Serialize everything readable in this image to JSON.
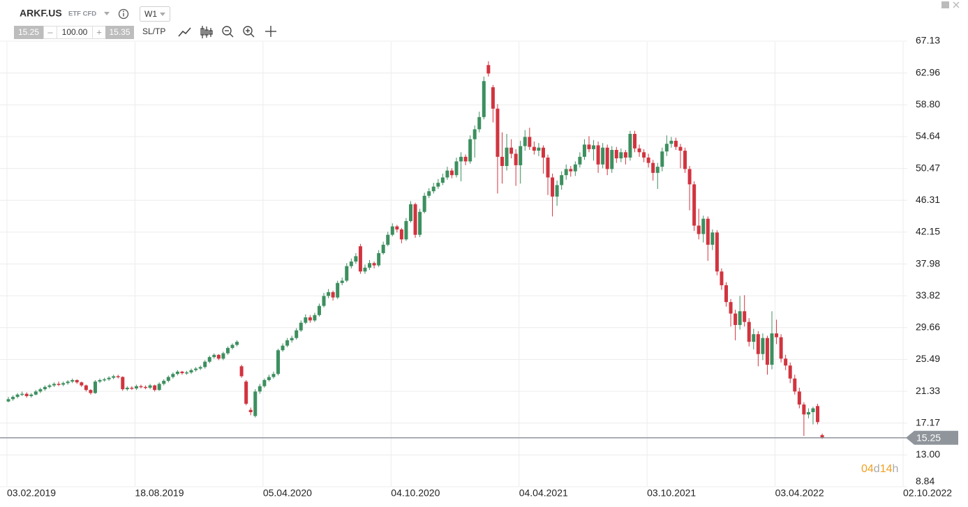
{
  "toolbar": {
    "symbol": "ARKF.US",
    "instrument_type": "ETF CFD",
    "timeframe": "W1",
    "sell_price": "15.25",
    "minus": "–",
    "volume": "100.00",
    "plus": "+",
    "buy_price": "15.35",
    "sl_tp": "SL/TP"
  },
  "chart_data": {
    "type": "candlestick",
    "up_color": "#3d8f5f",
    "down_color": "#d1343f",
    "grid": true,
    "current_price": 15.25,
    "countdown": [
      "04",
      "d",
      "14",
      "h"
    ],
    "xlim": [
      0,
      196
    ],
    "xticks": [
      {
        "value": 0,
        "label": "03.02.2019"
      },
      {
        "value": 28,
        "label": "18.08.2019"
      },
      {
        "value": 56,
        "label": "05.04.2020"
      },
      {
        "value": 84,
        "label": "04.10.2020"
      },
      {
        "value": 112,
        "label": "04.04.2021"
      },
      {
        "value": 140,
        "label": "03.10.2021"
      },
      {
        "value": 168,
        "label": "03.04.2022"
      },
      {
        "value": 196,
        "label": "02.10.2022"
      }
    ],
    "ylim": [
      8.84,
      67.13
    ],
    "yticks": [
      8.84,
      {
        "value": 13,
        "label": "13.00"
      },
      17.17,
      21.33,
      25.49,
      29.66,
      33.82,
      37.98,
      42.15,
      46.31,
      50.47,
      54.64,
      {
        "value": 58.8,
        "label": "58.80"
      },
      62.96,
      67.13
    ],
    "ohlc": [
      [
        20.0,
        20.6,
        19.9,
        20.3
      ],
      [
        20.3,
        20.8,
        20.1,
        20.6
      ],
      [
        20.6,
        21.1,
        20.4,
        20.9
      ],
      [
        20.9,
        21.3,
        20.7,
        21.0
      ],
      [
        21.0,
        21.2,
        20.5,
        20.7
      ],
      [
        20.7,
        21.1,
        20.5,
        20.9
      ],
      [
        20.9,
        21.5,
        20.8,
        21.3
      ],
      [
        21.3,
        21.8,
        21.1,
        21.6
      ],
      [
        21.6,
        22.1,
        21.4,
        21.9
      ],
      [
        21.9,
        22.3,
        21.7,
        22.1
      ],
      [
        22.1,
        22.5,
        21.9,
        22.3
      ],
      [
        22.3,
        22.6,
        22.0,
        22.2
      ],
      [
        22.2,
        22.6,
        22.0,
        22.4
      ],
      [
        22.4,
        22.8,
        22.2,
        22.6
      ],
      [
        22.6,
        23.0,
        22.4,
        22.8
      ],
      [
        22.8,
        22.9,
        22.3,
        22.5
      ],
      [
        22.5,
        22.6,
        21.9,
        22.1
      ],
      [
        22.1,
        22.2,
        21.3,
        21.5
      ],
      [
        21.5,
        21.6,
        20.9,
        21.1
      ],
      [
        21.1,
        22.8,
        21.0,
        22.6
      ],
      [
        22.6,
        23.0,
        22.4,
        22.8
      ],
      [
        22.8,
        23.1,
        22.6,
        22.9
      ],
      [
        22.9,
        23.3,
        22.7,
        23.1
      ],
      [
        23.1,
        23.5,
        22.9,
        23.3
      ],
      [
        23.3,
        23.5,
        23.0,
        23.2
      ],
      [
        23.2,
        23.3,
        21.4,
        21.6
      ],
      [
        21.6,
        22.0,
        21.4,
        21.8
      ],
      [
        21.8,
        22.0,
        21.5,
        21.7
      ],
      [
        21.7,
        22.2,
        21.5,
        22.0
      ],
      [
        22.0,
        22.2,
        21.7,
        21.9
      ],
      [
        21.9,
        22.1,
        21.6,
        21.8
      ],
      [
        21.8,
        22.3,
        21.6,
        22.1
      ],
      [
        22.1,
        22.2,
        21.3,
        21.5
      ],
      [
        21.5,
        22.5,
        21.4,
        22.3
      ],
      [
        22.3,
        22.9,
        22.1,
        22.7
      ],
      [
        22.7,
        23.4,
        22.5,
        23.2
      ],
      [
        23.2,
        23.8,
        23.0,
        23.6
      ],
      [
        23.6,
        24.1,
        23.4,
        23.9
      ],
      [
        23.9,
        24.0,
        23.5,
        23.7
      ],
      [
        23.7,
        24.0,
        23.5,
        23.8
      ],
      [
        23.8,
        24.3,
        23.6,
        24.1
      ],
      [
        24.1,
        24.5,
        23.9,
        24.3
      ],
      [
        24.3,
        24.7,
        24.1,
        24.5
      ],
      [
        24.5,
        25.4,
        24.3,
        25.2
      ],
      [
        25.2,
        26.0,
        25.0,
        25.8
      ],
      [
        25.8,
        26.3,
        25.6,
        26.1
      ],
      [
        26.1,
        26.2,
        25.4,
        25.6
      ],
      [
        25.6,
        26.5,
        25.4,
        26.3
      ],
      [
        26.3,
        27.2,
        26.1,
        27.0
      ],
      [
        27.0,
        27.6,
        26.8,
        27.4
      ],
      [
        27.4,
        28.0,
        27.2,
        27.8
      ],
      [
        24.6,
        24.8,
        23.1,
        23.3
      ],
      [
        22.6,
        22.8,
        19.5,
        19.7
      ],
      [
        18.9,
        19.2,
        18.2,
        18.6
      ],
      [
        18.1,
        21.6,
        17.9,
        21.3
      ],
      [
        21.3,
        22.3,
        21.0,
        22.0
      ],
      [
        22.0,
        23.0,
        21.8,
        22.8
      ],
      [
        22.8,
        23.5,
        22.6,
        23.2
      ],
      [
        23.2,
        23.9,
        23.0,
        23.6
      ],
      [
        23.6,
        26.9,
        23.4,
        26.7
      ],
      [
        26.7,
        27.6,
        26.5,
        27.3
      ],
      [
        27.3,
        28.3,
        27.1,
        28.0
      ],
      [
        28.0,
        28.6,
        27.7,
        28.3
      ],
      [
        28.3,
        29.6,
        28.1,
        29.3
      ],
      [
        29.3,
        30.6,
        29.1,
        30.3
      ],
      [
        30.3,
        31.4,
        30.1,
        31.0
      ],
      [
        31.0,
        31.3,
        30.3,
        30.6
      ],
      [
        30.6,
        31.6,
        30.4,
        31.3
      ],
      [
        31.3,
        32.8,
        31.1,
        32.5
      ],
      [
        32.5,
        34.2,
        32.3,
        33.8
      ],
      [
        33.8,
        34.7,
        33.5,
        34.3
      ],
      [
        34.3,
        34.5,
        33.2,
        33.6
      ],
      [
        33.6,
        35.8,
        33.4,
        35.5
      ],
      [
        35.5,
        36.2,
        35.2,
        35.8
      ],
      [
        35.8,
        38.1,
        35.6,
        37.7
      ],
      [
        37.7,
        38.7,
        37.4,
        38.3
      ],
      [
        38.3,
        39.4,
        38.0,
        39.0
      ],
      [
        40.3,
        40.6,
        36.7,
        37.0
      ],
      [
        37.0,
        37.9,
        36.7,
        37.5
      ],
      [
        37.5,
        38.5,
        37.2,
        38.1
      ],
      [
        38.1,
        38.3,
        37.4,
        37.8
      ],
      [
        37.8,
        39.8,
        37.6,
        39.4
      ],
      [
        39.4,
        40.9,
        39.2,
        40.5
      ],
      [
        40.5,
        42.2,
        40.3,
        41.8
      ],
      [
        41.8,
        43.3,
        41.6,
        42.9
      ],
      [
        42.9,
        43.1,
        42.1,
        42.5
      ],
      [
        42.5,
        42.7,
        40.7,
        41.2
      ],
      [
        41.2,
        44.0,
        41.0,
        43.6
      ],
      [
        43.6,
        46.2,
        43.4,
        45.8
      ],
      [
        45.8,
        46.0,
        41.4,
        41.8
      ],
      [
        41.8,
        45.2,
        41.5,
        44.8
      ],
      [
        44.8,
        47.3,
        44.6,
        46.9
      ],
      [
        46.9,
        47.9,
        46.6,
        47.5
      ],
      [
        47.5,
        48.6,
        47.2,
        48.1
      ],
      [
        48.1,
        49.1,
        47.8,
        48.6
      ],
      [
        48.6,
        49.8,
        48.3,
        49.3
      ],
      [
        49.3,
        50.7,
        49.0,
        50.2
      ],
      [
        50.2,
        50.5,
        49.2,
        49.6
      ],
      [
        49.6,
        51.9,
        49.3,
        51.4
      ],
      [
        51.4,
        52.6,
        48.8,
        52.0
      ],
      [
        52.0,
        52.3,
        50.9,
        51.4
      ],
      [
        51.4,
        54.8,
        51.1,
        54.3
      ],
      [
        54.3,
        56.1,
        51.9,
        55.6
      ],
      [
        55.6,
        57.9,
        55.2,
        57.2
      ],
      [
        57.2,
        62.5,
        56.9,
        61.9
      ],
      [
        64.0,
        64.5,
        62.5,
        62.9
      ],
      [
        61.1,
        61.4,
        56.5,
        58.3
      ],
      [
        58.3,
        58.9,
        47.2,
        52.0
      ],
      [
        52.0,
        55.2,
        48.5,
        50.8
      ],
      [
        50.8,
        55.0,
        50.2,
        53.2
      ],
      [
        53.2,
        54.3,
        51.8,
        52.4
      ],
      [
        52.4,
        53.0,
        48.2,
        50.9
      ],
      [
        50.9,
        54.1,
        48.5,
        53.4
      ],
      [
        53.4,
        55.5,
        52.8,
        54.6
      ],
      [
        54.6,
        55.8,
        52.9,
        53.3
      ],
      [
        53.3,
        54.0,
        52.3,
        52.8
      ],
      [
        52.8,
        53.8,
        52.1,
        53.2
      ],
      [
        53.2,
        53.5,
        49.8,
        51.9
      ],
      [
        51.9,
        52.3,
        47.0,
        49.3
      ],
      [
        49.3,
        49.8,
        44.2,
        46.8
      ],
      [
        46.8,
        48.9,
        45.6,
        48.3
      ],
      [
        48.3,
        50.1,
        47.7,
        49.6
      ],
      [
        49.6,
        51.0,
        49.0,
        50.4
      ],
      [
        50.4,
        50.8,
        49.4,
        50.1
      ],
      [
        50.1,
        51.4,
        49.5,
        51.0
      ],
      [
        51.0,
        52.6,
        50.6,
        52.0
      ],
      [
        52.0,
        54.3,
        51.6,
        53.6
      ],
      [
        53.6,
        54.7,
        52.6,
        53.0
      ],
      [
        53.0,
        54.2,
        51.5,
        53.5
      ],
      [
        53.5,
        54.0,
        49.9,
        51.0
      ],
      [
        51.0,
        53.8,
        50.5,
        53.2
      ],
      [
        53.2,
        53.6,
        49.6,
        50.4
      ],
      [
        50.4,
        53.4,
        49.9,
        52.9
      ],
      [
        52.9,
        53.3,
        51.2,
        51.8
      ],
      [
        51.8,
        53.1,
        51.3,
        52.6
      ],
      [
        52.6,
        52.9,
        51.0,
        51.9
      ],
      [
        51.9,
        55.4,
        51.5,
        55.0
      ],
      [
        55.0,
        55.4,
        52.6,
        53.1
      ],
      [
        53.1,
        53.6,
        52.0,
        52.6
      ],
      [
        52.6,
        53.0,
        51.3,
        51.9
      ],
      [
        51.9,
        52.4,
        50.6,
        51.2
      ],
      [
        51.2,
        51.6,
        48.9,
        49.9
      ],
      [
        49.9,
        51.2,
        47.8,
        50.7
      ],
      [
        50.7,
        53.2,
        50.1,
        52.7
      ],
      [
        52.7,
        54.8,
        52.1,
        53.7
      ],
      [
        53.7,
        54.6,
        53.2,
        54.1
      ],
      [
        54.1,
        54.5,
        52.9,
        53.3
      ],
      [
        53.3,
        53.7,
        50.5,
        52.8
      ],
      [
        52.8,
        53.2,
        49.9,
        50.4
      ],
      [
        50.4,
        50.8,
        45.0,
        48.4
      ],
      [
        48.4,
        48.8,
        42.3,
        43.0
      ],
      [
        43.0,
        45.2,
        41.2,
        41.9
      ],
      [
        41.9,
        44.3,
        40.8,
        43.9
      ],
      [
        43.9,
        44.2,
        38.4,
        40.5
      ],
      [
        40.5,
        42.5,
        39.8,
        42.1
      ],
      [
        42.1,
        42.4,
        36.5,
        37.0
      ],
      [
        37.0,
        37.4,
        34.6,
        35.2
      ],
      [
        35.2,
        35.6,
        32.4,
        33.0
      ],
      [
        33.0,
        33.4,
        29.8,
        31.5
      ],
      [
        31.5,
        32.0,
        28.0,
        30.0
      ],
      [
        30.0,
        33.8,
        29.4,
        31.8
      ],
      [
        31.8,
        33.9,
        29.8,
        30.4
      ],
      [
        30.4,
        30.9,
        27.2,
        27.8
      ],
      [
        27.8,
        29.5,
        26.8,
        28.8
      ],
      [
        28.8,
        29.2,
        24.6,
        26.2
      ],
      [
        26.2,
        28.9,
        25.4,
        28.3
      ],
      [
        28.3,
        28.6,
        23.5,
        24.8
      ],
      [
        24.8,
        31.8,
        24.2,
        28.9
      ],
      [
        28.9,
        30.7,
        27.5,
        28.4
      ],
      [
        28.4,
        28.8,
        25.1,
        25.6
      ],
      [
        25.6,
        26.1,
        24.1,
        24.7
      ],
      [
        24.7,
        25.1,
        22.4,
        23.0
      ],
      [
        23.0,
        23.5,
        20.9,
        21.3
      ],
      [
        21.3,
        21.8,
        19.1,
        19.6
      ],
      [
        19.6,
        19.9,
        15.5,
        18.3
      ],
      [
        18.3,
        19.1,
        17.8,
        18.6
      ],
      [
        18.6,
        19.3,
        17.0,
        19.1
      ],
      [
        19.4,
        19.7,
        17.0,
        17.3
      ],
      [
        15.6,
        15.8,
        15.1,
        15.25
      ]
    ]
  }
}
